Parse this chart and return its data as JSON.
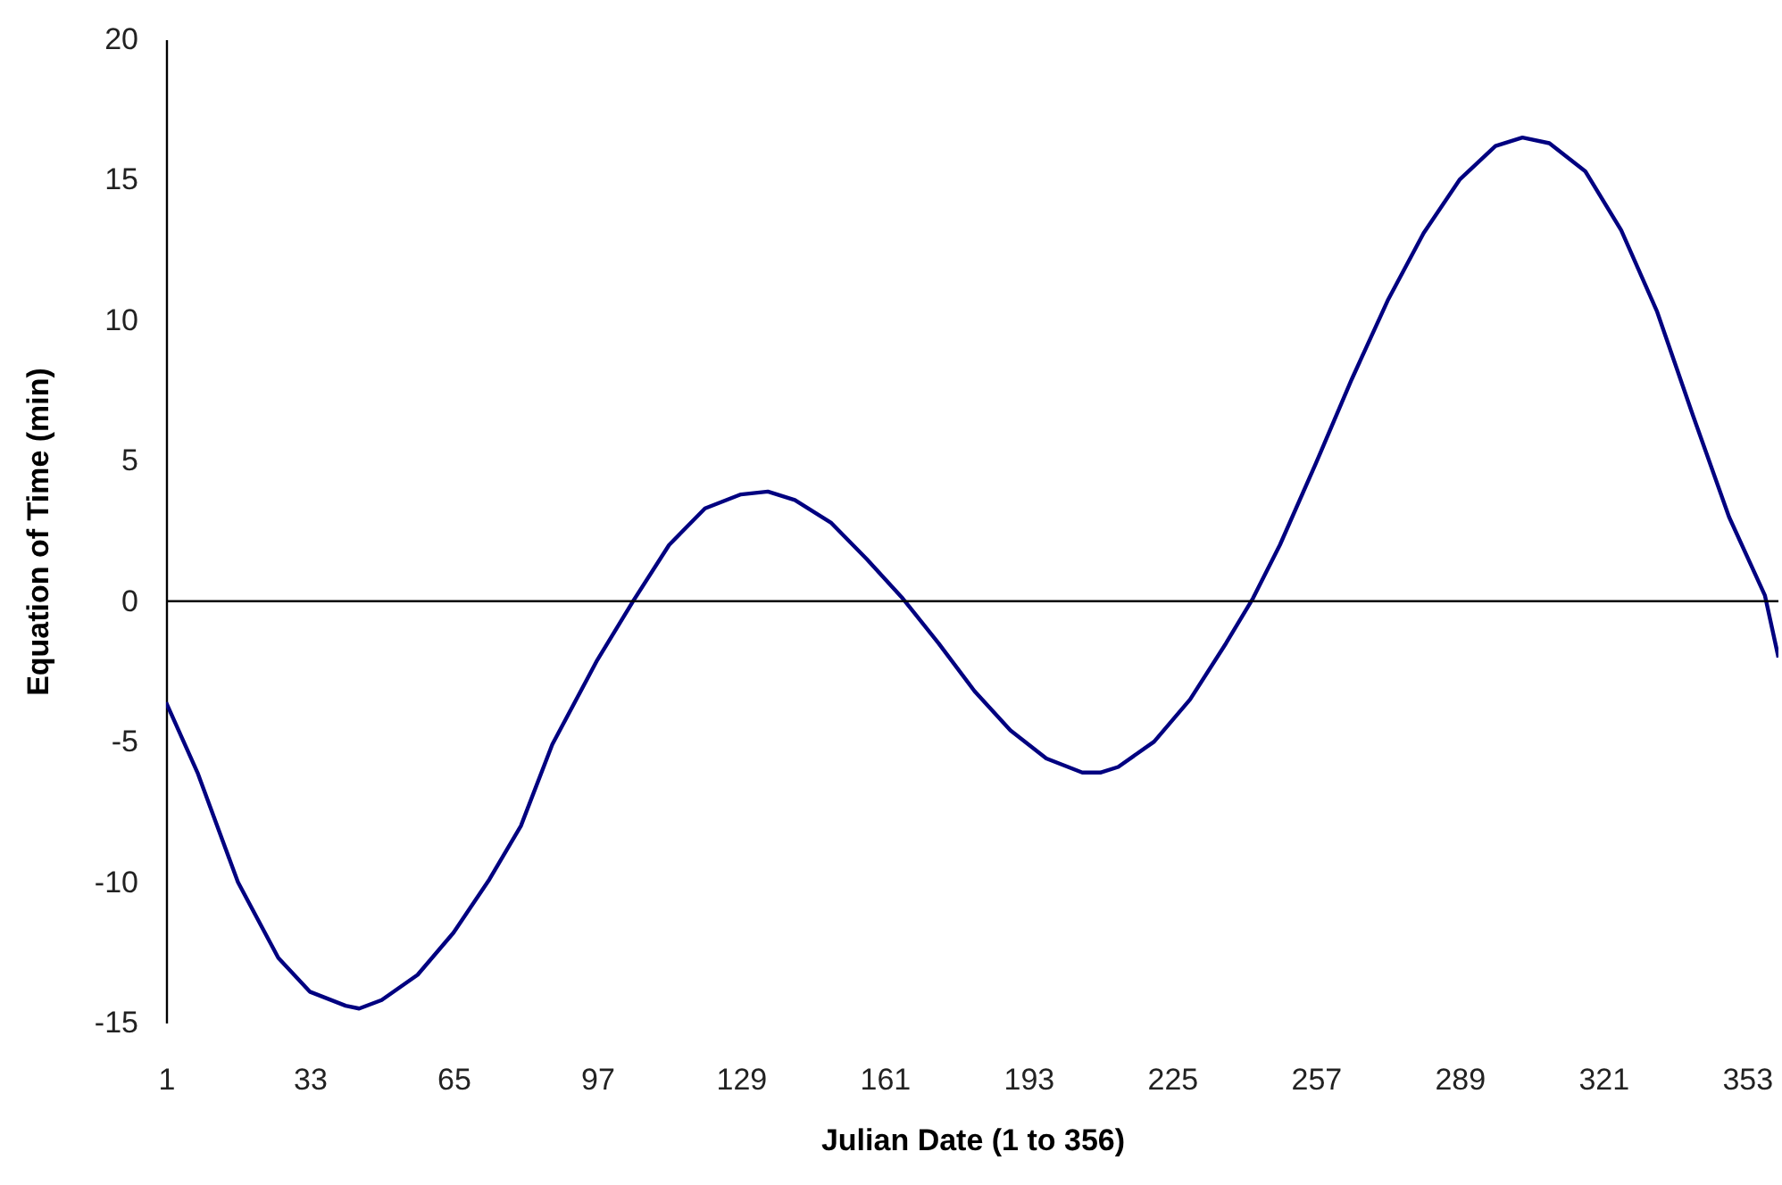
{
  "chart_data": {
    "type": "line",
    "xlabel": "Julian Date (1 to 356)",
    "ylabel": "Equation of Time (min)",
    "x": [
      1,
      8,
      17,
      26,
      33,
      41,
      44,
      49,
      57,
      65,
      73,
      80,
      87,
      97,
      105,
      113,
      121,
      129,
      135,
      141,
      149,
      157,
      165,
      173,
      181,
      189,
      197,
      205,
      209,
      213,
      221,
      229,
      237,
      243,
      249,
      257,
      265,
      273,
      281,
      289,
      297,
      303,
      309,
      317,
      325,
      333,
      341,
      349,
      357,
      360
    ],
    "series": [
      {
        "color": "#000080",
        "values": [
          -3.6,
          -6.1,
          -10.0,
          -12.7,
          -13.9,
          -14.4,
          -14.5,
          -14.2,
          -13.3,
          -11.8,
          -9.9,
          -8.0,
          -5.1,
          -2.1,
          0,
          2.0,
          3.3,
          3.8,
          3.9,
          3.6,
          2.8,
          1.5,
          0.1,
          -1.5,
          -3.2,
          -4.6,
          -5.6,
          -6.1,
          -6.1,
          -5.9,
          -5.0,
          -3.5,
          -1.5,
          0.1,
          2.0,
          4.9,
          7.9,
          10.7,
          13.1,
          15.0,
          16.2,
          16.5,
          16.3,
          15.3,
          13.2,
          10.3,
          6.6,
          3.0,
          0.2,
          -2.0
        ]
      }
    ],
    "xlim": [
      1,
      360
    ],
    "ylim": [
      -15,
      20
    ],
    "xticks": [
      1,
      33,
      65,
      97,
      129,
      161,
      193,
      225,
      257,
      289,
      321,
      353
    ],
    "yticks": [
      -15,
      -10,
      -5,
      0,
      5,
      10,
      15,
      20
    ],
    "ref_lines": [
      {
        "axis": "y",
        "value": 0,
        "color": "#000000"
      }
    ]
  }
}
